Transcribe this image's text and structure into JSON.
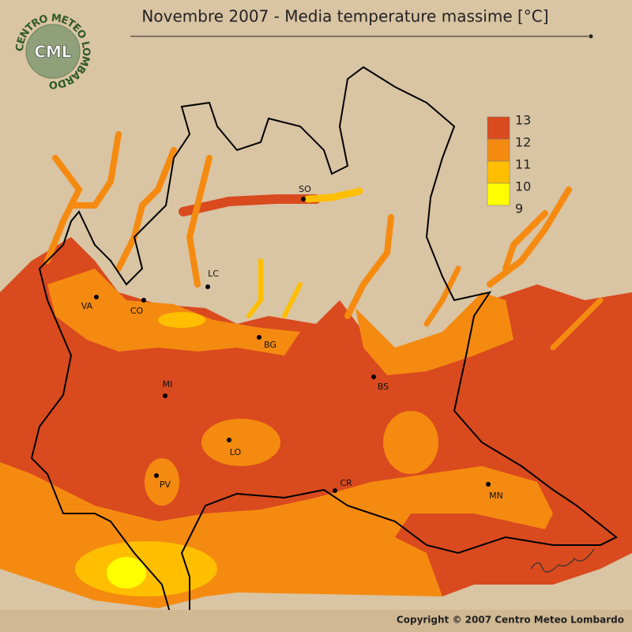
{
  "title": "Novembre 2007 - Media temperature massime [°C]",
  "logo": {
    "ring": "CENTRO METEO LOMBARDO",
    "abbr": "CML"
  },
  "legend": [
    {
      "value": 13,
      "color": "#d94a1e"
    },
    {
      "value": 12,
      "color": "#f58a10"
    },
    {
      "value": 11,
      "color": "#ffbf00"
    },
    {
      "value": 10,
      "color": "#ffff00"
    },
    {
      "value": 9,
      "color": "#ffff00"
    }
  ],
  "cities": [
    "SO",
    "LC",
    "VA",
    "CO",
    "BG",
    "MI",
    "BS",
    "LO",
    "PV",
    "CR",
    "MN"
  ],
  "copyright": "Copyright © 2007 Centro Meteo Lombardo"
}
